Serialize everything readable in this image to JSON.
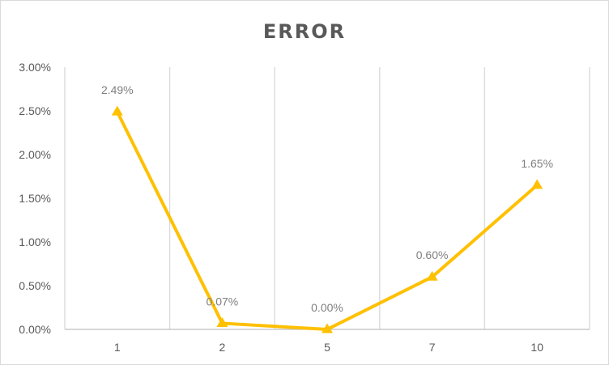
{
  "chart_data": {
    "type": "line",
    "title": "ERROR",
    "categories": [
      "1",
      "2",
      "5",
      "7",
      "10"
    ],
    "series": [
      {
        "values": [
          2.49,
          0.07,
          0.0,
          0.6,
          1.65
        ],
        "color": "#ffc000",
        "marker": "triangle"
      }
    ],
    "data_labels": [
      "2.49%",
      "0.07%",
      "0.00%",
      "0.60%",
      "1.65%"
    ],
    "y_ticks": [
      "0.00%",
      "0.50%",
      "1.00%",
      "1.50%",
      "2.00%",
      "2.50%",
      "3.00%"
    ],
    "ylim": [
      0,
      3
    ],
    "grid": "vertical",
    "legend": "none"
  }
}
